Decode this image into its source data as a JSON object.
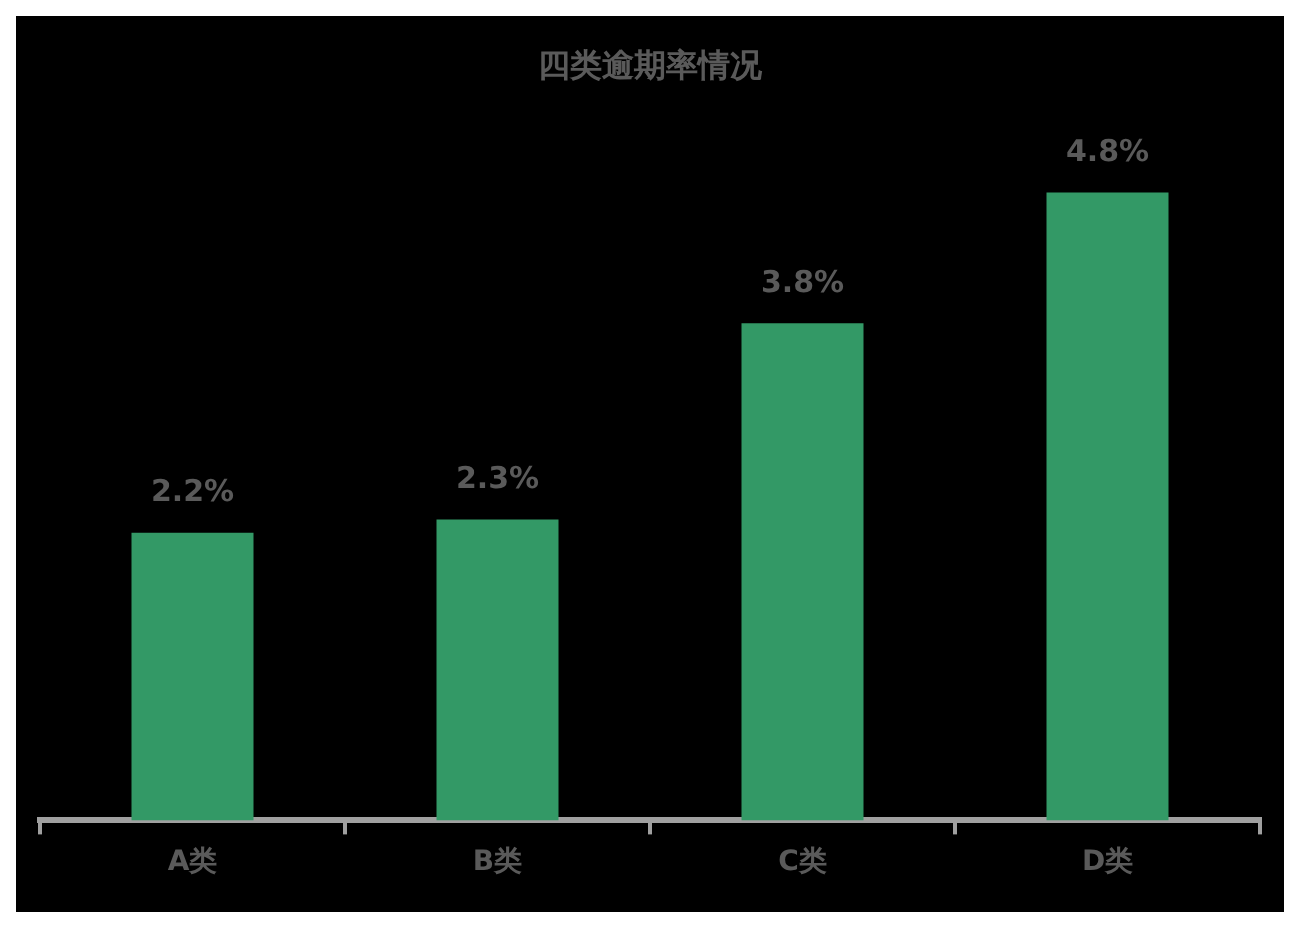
{
  "chart_data": {
    "type": "bar",
    "title": "四类逾期率情况",
    "categories": [
      "A类",
      "B类",
      "C类",
      "D类"
    ],
    "values": [
      2.2,
      2.3,
      3.8,
      4.8
    ],
    "value_labels": [
      "2.2%",
      "2.3%",
      "3.8%",
      "4.8%"
    ],
    "color": "#339966",
    "legend": false,
    "grid": false
  }
}
